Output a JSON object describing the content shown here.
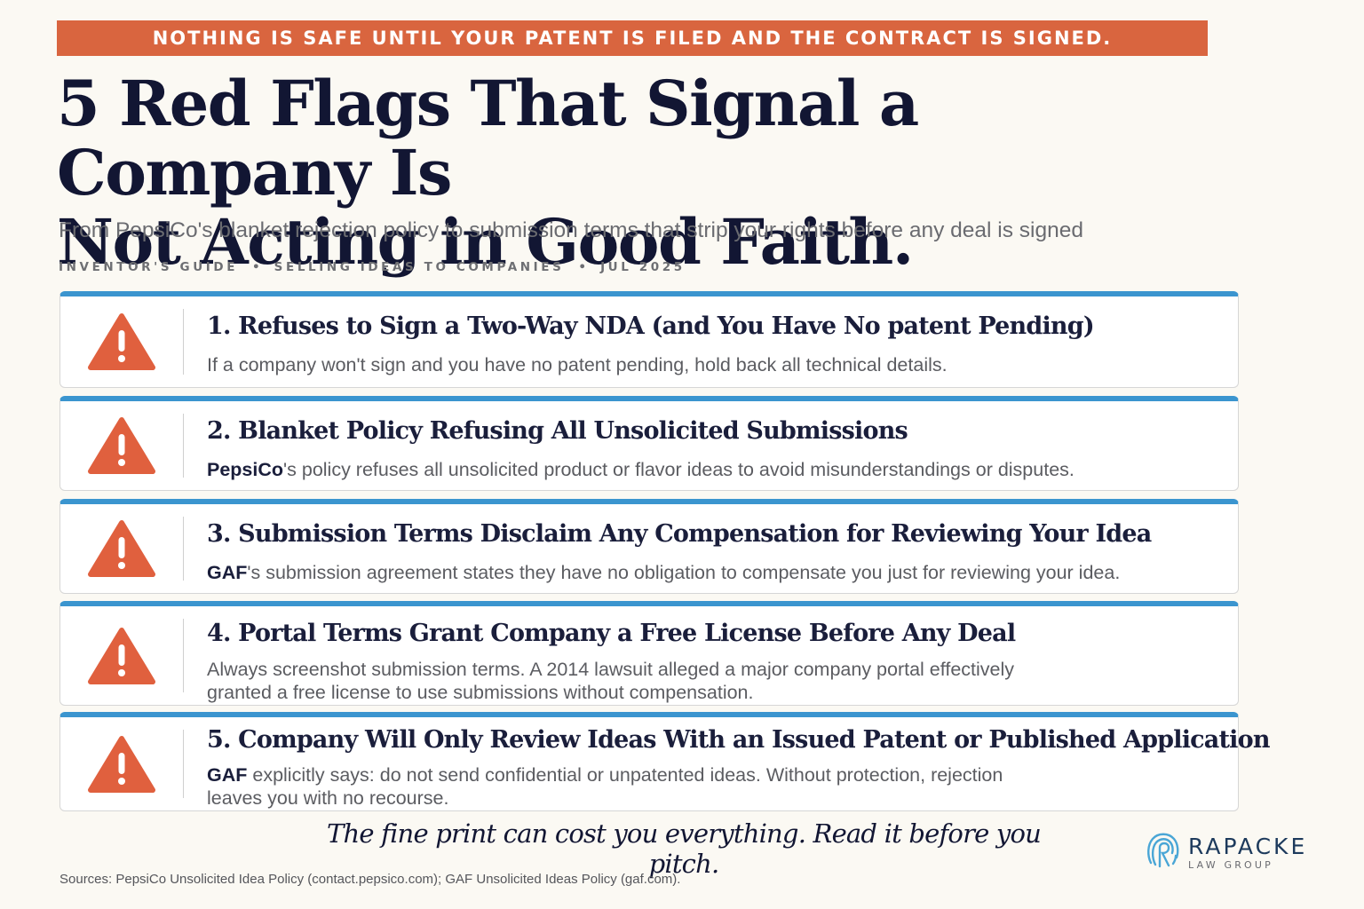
{
  "banner": "NOTHING IS SAFE UNTIL YOUR PATENT IS FILED AND THE CONTRACT IS SIGNED.",
  "title_line1": "5 Red Flags That Signal a Company Is",
  "title_line2": "Not Acting in Good Faith.",
  "subtitle": "From PepsiCo's blanket rejection policy to submission terms that strip your rights before any deal is signed",
  "meta": [
    "INVENTOR'S GUIDE",
    "SELLING IDEAS TO COMPANIES",
    "JUL 2025"
  ],
  "meta_separator": "•",
  "flags": [
    {
      "title": "1. Refuses to Sign a Two-Way NDA (and You Have No patent Pending)",
      "lead": "",
      "text": "If a company won't sign and you have no patent pending, hold back all technical details."
    },
    {
      "title": "2. Blanket Policy Refusing All Unsolicited Submissions",
      "lead": "PepsiCo",
      "text": "'s policy refuses all unsolicited product or flavor ideas to avoid misunderstandings or disputes."
    },
    {
      "title": "3. Submission Terms Disclaim Any Compensation for Reviewing Your Idea",
      "lead": "GAF",
      "text": "'s submission agreement states they have no obligation to compensate you just for reviewing your idea."
    },
    {
      "title": "4. Portal Terms Grant Company a Free License Before Any Deal",
      "lead": "",
      "text": "Always screenshot submission terms. A 2014 lawsuit alleged a major company portal effectively granted a free license to use submissions without compensation."
    },
    {
      "title": "5. Company Will Only Review Ideas With an Issued Patent or Published Application",
      "lead": "GAF",
      "text": " explicitly says: do not send confidential or unpatented ideas. Without protection, rejection leaves you with no recourse."
    }
  ],
  "warning_icon": "warning-triangle-icon",
  "tagline": "The fine print can cost you everything. Read it before you pitch.",
  "logo": {
    "name": "RAPACKE",
    "sub": "LAW GROUP",
    "icon": "fingerprint-r-icon"
  },
  "sources": "Sources: PepsiCo Unsolicited Idea Policy (contact.pepsico.com); GAF Unsolicited Ideas Policy (gaf.com).",
  "colors": {
    "banner": "#d9653f",
    "accent_bar": "#3b95cf",
    "warning": "#e0603e",
    "title": "#121633",
    "background": "#fbf9f3"
  }
}
